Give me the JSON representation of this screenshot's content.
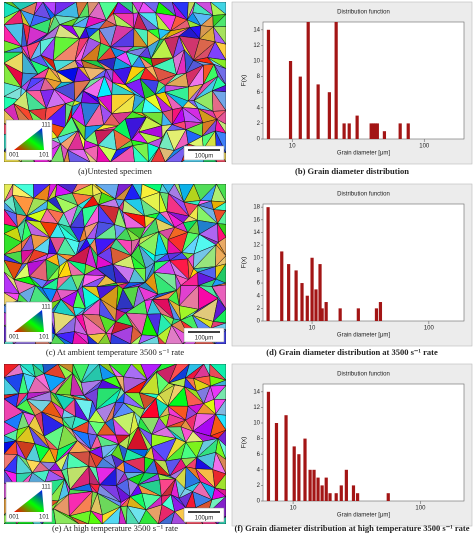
{
  "images": [
    {
      "caption": "(a)Untested specimen",
      "key": [
        "111",
        "001",
        "101"
      ],
      "scale_bar": "100μm"
    },
    {
      "caption": "(c) At ambient temperature 3500 s⁻¹ rate",
      "key": [
        "111",
        "001",
        "101"
      ],
      "scale_bar": "100μm"
    },
    {
      "caption": "(e) At high temperature 3500 s⁻¹ rate",
      "key": [
        "111",
        "001",
        "101"
      ],
      "scale_bar": "100μm"
    }
  ],
  "chart_data": [
    {
      "type": "bar",
      "title": "Distribution function",
      "caption": "(b) Grain diameter distribution",
      "x_label": "Grain diameter [μm]",
      "y_label": "F(x)",
      "log_x": true,
      "color": "#a31515",
      "x": [
        6.6,
        9.7,
        11.5,
        13.2,
        15.7,
        19.1,
        21.5,
        24.7,
        27,
        31,
        39.6,
        41.1,
        42.5,
        44.1,
        49.9,
        65.7,
        75.6
      ],
      "values": [
        14,
        10,
        8,
        15,
        7,
        6,
        15,
        2,
        2,
        3,
        2,
        2,
        2,
        2,
        1,
        2,
        2
      ],
      "xlim": [
        6,
        200
      ],
      "xticks": [
        10,
        100
      ],
      "ylim": [
        0,
        15
      ],
      "yticks": [
        0,
        2,
        4,
        6,
        8,
        10,
        12,
        14
      ]
    },
    {
      "type": "bar",
      "title": "Distribution function",
      "caption": "(d) Grain diameter distribution at 3500 s⁻¹ rate",
      "x_label": "Grain diameter [μm]",
      "y_label": "F(x)",
      "log_x": true,
      "color": "#a31515",
      "x": [
        4.2,
        5.5,
        6.3,
        7.3,
        8.2,
        9.1,
        10,
        10.8,
        11.7,
        12.2,
        13.2,
        17.4,
        24.9,
        35.6,
        38.5
      ],
      "values": [
        18,
        11,
        9,
        8,
        6,
        4,
        10,
        5,
        9,
        2,
        3,
        2,
        2,
        2,
        3
      ],
      "xlim": [
        3.8,
        200
      ],
      "xticks": [
        10,
        100
      ],
      "ylim": [
        0,
        18.5
      ],
      "yticks": [
        0,
        2,
        4,
        6,
        8,
        10,
        12,
        14,
        16,
        18
      ]
    },
    {
      "type": "bar",
      "title": "Distribution function",
      "caption": "(f) Grain diameter distribution at high temperature 3500 s⁻¹ rate",
      "x_label": "Grain diameter [μm]",
      "y_label": "F(x)",
      "log_x": true,
      "color": "#a31515",
      "x": [
        6.4,
        7.4,
        8.8,
        10.2,
        11.1,
        12.4,
        13.6,
        14.6,
        15.7,
        16.9,
        18.2,
        19.5,
        21.8,
        23.9,
        26.2,
        29.8,
        32.1,
        55.9
      ],
      "values": [
        14,
        10,
        11,
        7,
        6,
        8,
        4,
        4,
        3,
        2,
        3,
        1,
        1,
        2,
        4,
        2,
        1,
        1
      ],
      "xlim": [
        5.8,
        220
      ],
      "xticks": [
        10,
        100
      ],
      "ylim": [
        0,
        15
      ],
      "yticks": [
        0,
        2,
        4,
        6,
        8,
        10,
        12,
        14
      ]
    }
  ]
}
